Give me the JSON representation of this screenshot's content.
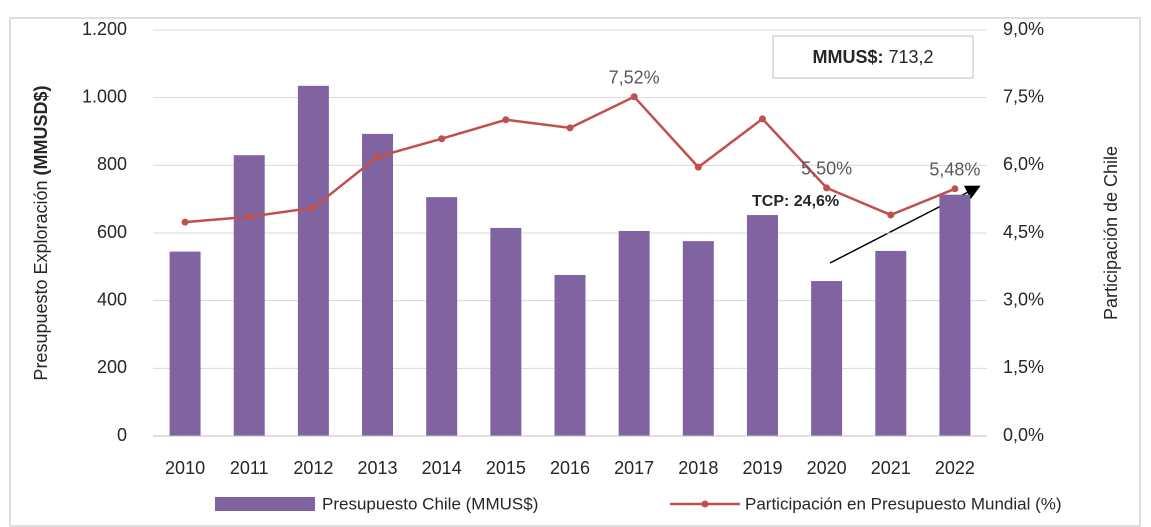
{
  "chart_data": {
    "type": "bar_line",
    "y_axis_label": [
      "Presupuesto Exploración ",
      "(MMUSD$)"
    ],
    "y2_axis_label": "Participación de Chile",
    "categories": [
      "2010",
      "2011",
      "2012",
      "2013",
      "2014",
      "2015",
      "2016",
      "2017",
      "2018",
      "2019",
      "2020",
      "2021",
      "2022"
    ],
    "series": [
      {
        "name": "Presupuesto Chile (MMUS$)",
        "type": "bar",
        "color": "#8064a2",
        "values": [
          545,
          830,
          1035,
          893,
          706,
          615,
          476,
          606,
          576,
          653,
          458,
          547,
          713.2
        ]
      },
      {
        "name": "Participación en Presupuesto Mundial (%)",
        "type": "line",
        "axis": "y2",
        "color": "#c0504d",
        "values": [
          4.74,
          4.86,
          5.06,
          6.19,
          6.59,
          7.01,
          6.83,
          7.52,
          5.96,
          7.03,
          5.5,
          4.9,
          5.48
        ],
        "value_labels": [
          null,
          null,
          null,
          null,
          null,
          null,
          null,
          "7,52%",
          null,
          null,
          "5,50%",
          null,
          "5,48%"
        ]
      }
    ],
    "ylim": [
      0,
      1200
    ],
    "yticks": [
      0,
      200,
      400,
      600,
      800,
      {
        "value": 1000,
        "label": "1.000"
      },
      {
        "value": 1200,
        "label": "1.200"
      }
    ],
    "y2lim": [
      0,
      9
    ],
    "y2ticks": [
      {
        "value": 0,
        "label": "0,0%"
      },
      {
        "value": 1.5,
        "label": "1,5%"
      },
      {
        "value": 3,
        "label": "3,0%"
      },
      {
        "value": 4.5,
        "label": "4,5%"
      },
      {
        "value": 6,
        "label": "6,0%"
      },
      {
        "value": 7.5,
        "label": "7,5%"
      },
      {
        "value": 9,
        "label": "9,0%"
      }
    ],
    "grid": true,
    "legend": "bottom",
    "annotations": {
      "box": {
        "label": "MMUS$:",
        "value": 713.2,
        "value_label": "713,2"
      },
      "growth": "TCP: 24,6%"
    }
  }
}
